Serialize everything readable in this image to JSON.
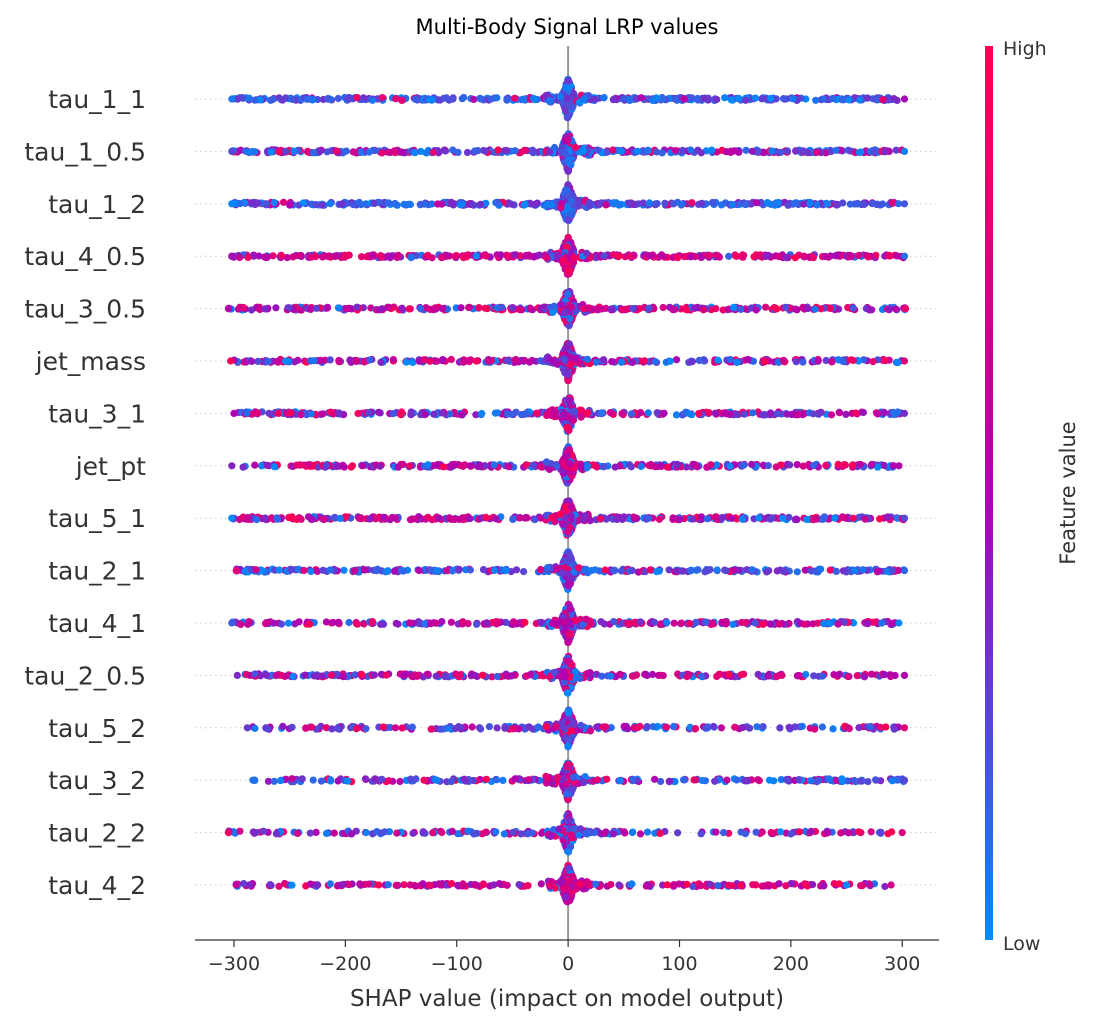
{
  "chart_data": {
    "type": "scatter",
    "subtype": "shap-beeswarm-summary",
    "title": "Multi-Body Signal LRP values",
    "xlabel": "SHAP value (impact on model output)",
    "ylabel": "",
    "xlim": [
      -335,
      333
    ],
    "xticks": [
      -300,
      -200,
      -100,
      0,
      100,
      200,
      300
    ],
    "xtick_labels": [
      "−300",
      "−200",
      "−100",
      "0",
      "100",
      "200",
      "300"
    ],
    "grid": false,
    "zero_line": true,
    "features": [
      {
        "name": "tau_1_1",
        "x_min": -302,
        "x_max": 302,
        "density": 1.0,
        "blue_bias": 0.92,
        "sparse": 0.0
      },
      {
        "name": "tau_1_0.5",
        "x_min": -302,
        "x_max": 302,
        "density": 1.0,
        "blue_bias": 0.6,
        "sparse": 0.0
      },
      {
        "name": "tau_1_2",
        "x_min": -302,
        "x_max": 302,
        "density": 1.0,
        "blue_bias": 0.9,
        "sparse": 0.0
      },
      {
        "name": "tau_4_0.5",
        "x_min": -302,
        "x_max": 302,
        "density": 0.9,
        "blue_bias": 0.15,
        "sparse": 0.0
      },
      {
        "name": "tau_3_0.5",
        "x_min": -305,
        "x_max": 303,
        "density": 0.85,
        "blue_bias": 0.3,
        "sparse": 0.08
      },
      {
        "name": "jet_mass",
        "x_min": -303,
        "x_max": 302,
        "density": 0.8,
        "blue_bias": 0.4,
        "sparse": 0.1
      },
      {
        "name": "tau_3_1",
        "x_min": -300,
        "x_max": 302,
        "density": 0.85,
        "blue_bias": 0.45,
        "sparse": 0.1
      },
      {
        "name": "jet_pt",
        "x_min": -302,
        "x_max": 297,
        "density": 0.85,
        "blue_bias": 0.3,
        "sparse": 0.1
      },
      {
        "name": "tau_5_1",
        "x_min": -302,
        "x_max": 302,
        "density": 0.9,
        "blue_bias": 0.35,
        "sparse": 0.0
      },
      {
        "name": "tau_2_1",
        "x_min": -298,
        "x_max": 302,
        "density": 0.8,
        "blue_bias": 0.75,
        "sparse": 0.12
      },
      {
        "name": "tau_4_1",
        "x_min": -302,
        "x_max": 297,
        "density": 0.8,
        "blue_bias": 0.3,
        "sparse": 0.12
      },
      {
        "name": "tau_2_0.5",
        "x_min": -297,
        "x_max": 302,
        "density": 0.8,
        "blue_bias": 0.35,
        "sparse": 0.15
      },
      {
        "name": "tau_5_2",
        "x_min": -288,
        "x_max": 302,
        "density": 0.7,
        "blue_bias": 0.55,
        "sparse": 0.35
      },
      {
        "name": "tau_3_2",
        "x_min": -283,
        "x_max": 302,
        "density": 0.7,
        "blue_bias": 0.55,
        "sparse": 0.35
      },
      {
        "name": "tau_2_2",
        "x_min": -305,
        "x_max": 300,
        "density": 0.7,
        "blue_bias": 0.55,
        "sparse": 0.4
      },
      {
        "name": "tau_4_2",
        "x_min": -298,
        "x_max": 290,
        "density": 0.7,
        "blue_bias": 0.1,
        "sparse": 0.35
      }
    ],
    "colorbar": {
      "label": "Feature value",
      "high_label": "High",
      "low_label": "Low",
      "high_color": "#ff0052",
      "mid_color": "#b000b0",
      "low_color": "#008bfb"
    },
    "colors": {
      "axis": "#333333",
      "zero_line": "#999999",
      "row_guide": "#cccccc",
      "text": "#333333"
    }
  }
}
